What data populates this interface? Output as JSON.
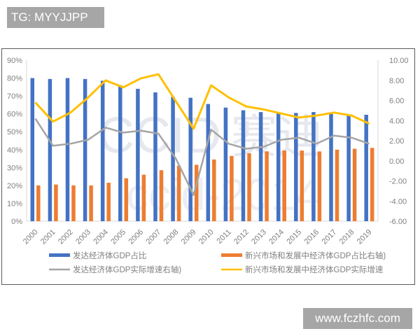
{
  "watermarks": {
    "top_left": "TG: MYYJJPP",
    "bottom_right": "www.fczhfc.com",
    "background": "CCID 赛迪 ccid-2014"
  },
  "chart_data": {
    "type": "bar+line",
    "title": "",
    "categories": [
      "2000",
      "2001",
      "2002",
      "2003",
      "2004",
      "2005",
      "2006",
      "2007",
      "2008",
      "2009",
      "2010",
      "2011",
      "2012",
      "2013",
      "2014",
      "2015",
      "2016",
      "2017",
      "2018",
      "2019"
    ],
    "left_axis": {
      "ylim": [
        0,
        90
      ],
      "ticks": [
        "0%",
        "10%",
        "20%",
        "30%",
        "40%",
        "50%",
        "60%",
        "70%",
        "80%",
        "90%"
      ]
    },
    "right_axis": {
      "ylim": [
        -6,
        10
      ],
      "ticks": [
        "-6.00",
        "-4.00",
        "-2.00",
        "0.00",
        "2.00",
        "4.00",
        "6.00",
        "8.00",
        "10.00"
      ]
    },
    "series": [
      {
        "name": "发达经济体GDP占比",
        "type": "bar",
        "axis": "left",
        "color": "#4472c4",
        "values": [
          80,
          79.5,
          80,
          79.5,
          78.5,
          76,
          74,
          72,
          69.5,
          69,
          65.5,
          63.5,
          62,
          61,
          60.5,
          60.5,
          61,
          60,
          59,
          59.5
        ]
      },
      {
        "name": "新兴市场和发展中经济体GDP占比右轴)",
        "type": "bar",
        "axis": "left",
        "color": "#ed7d31",
        "values": [
          20,
          20.5,
          20,
          20,
          21.5,
          24,
          26,
          28.5,
          31,
          31.5,
          34.5,
          36.5,
          38,
          39,
          39.5,
          39.5,
          39,
          40,
          40.5,
          41
        ]
      },
      {
        "name": "发达经济体GDP实际增速右轴)",
        "type": "line",
        "axis": "right",
        "color": "#a5a5a5",
        "values": [
          4.2,
          1.5,
          1.7,
          2.1,
          3.3,
          2.8,
          3.0,
          2.7,
          0.2,
          -3.4,
          3.1,
          1.7,
          1.2,
          1.4,
          2.1,
          2.3,
          1.7,
          2.5,
          2.3,
          1.7
        ]
      },
      {
        "name": "新兴市场和发展中经济体GDP实际增速",
        "type": "line",
        "axis": "right",
        "color": "#ffc000",
        "values": [
          5.8,
          3.9,
          4.8,
          6.3,
          8.0,
          7.3,
          8.2,
          8.6,
          5.9,
          3.2,
          7.5,
          6.3,
          5.4,
          5.1,
          4.7,
          4.3,
          4.5,
          4.8,
          4.5,
          3.7
        ]
      }
    ],
    "legend": {
      "position": "bottom",
      "entries": [
        "发达经济体GDP占比",
        "新兴市场和发展中经济体GDP占比右轴)",
        "发达经济体GDP实际增速右轴)",
        "新兴市场和发展中经济体GDP实际增速"
      ]
    },
    "grid": false
  }
}
